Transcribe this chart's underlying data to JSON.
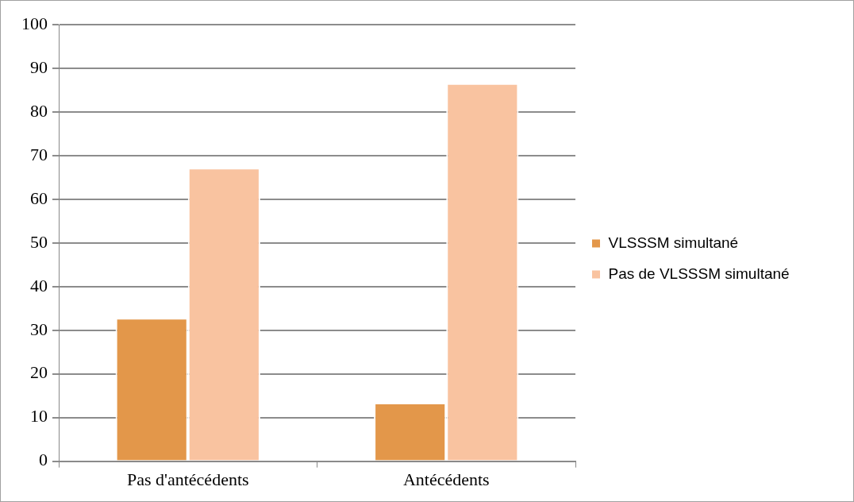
{
  "chart_data": {
    "type": "bar",
    "categories": [
      "Pas d'antécédents",
      "Antécédents"
    ],
    "series": [
      {
        "name": "VLSSSM simultané",
        "color": "#e3974a",
        "values": [
          32.8,
          13.4
        ]
      },
      {
        "name": "Pas de VLSSSM simultané",
        "color": "#f9c3a0",
        "values": [
          67.2,
          86.6
        ]
      }
    ],
    "ylim": [
      0,
      100
    ],
    "yticks": [
      0,
      10,
      20,
      30,
      40,
      50,
      60,
      70,
      80,
      90,
      100
    ],
    "grid": "y",
    "legend": "right"
  }
}
